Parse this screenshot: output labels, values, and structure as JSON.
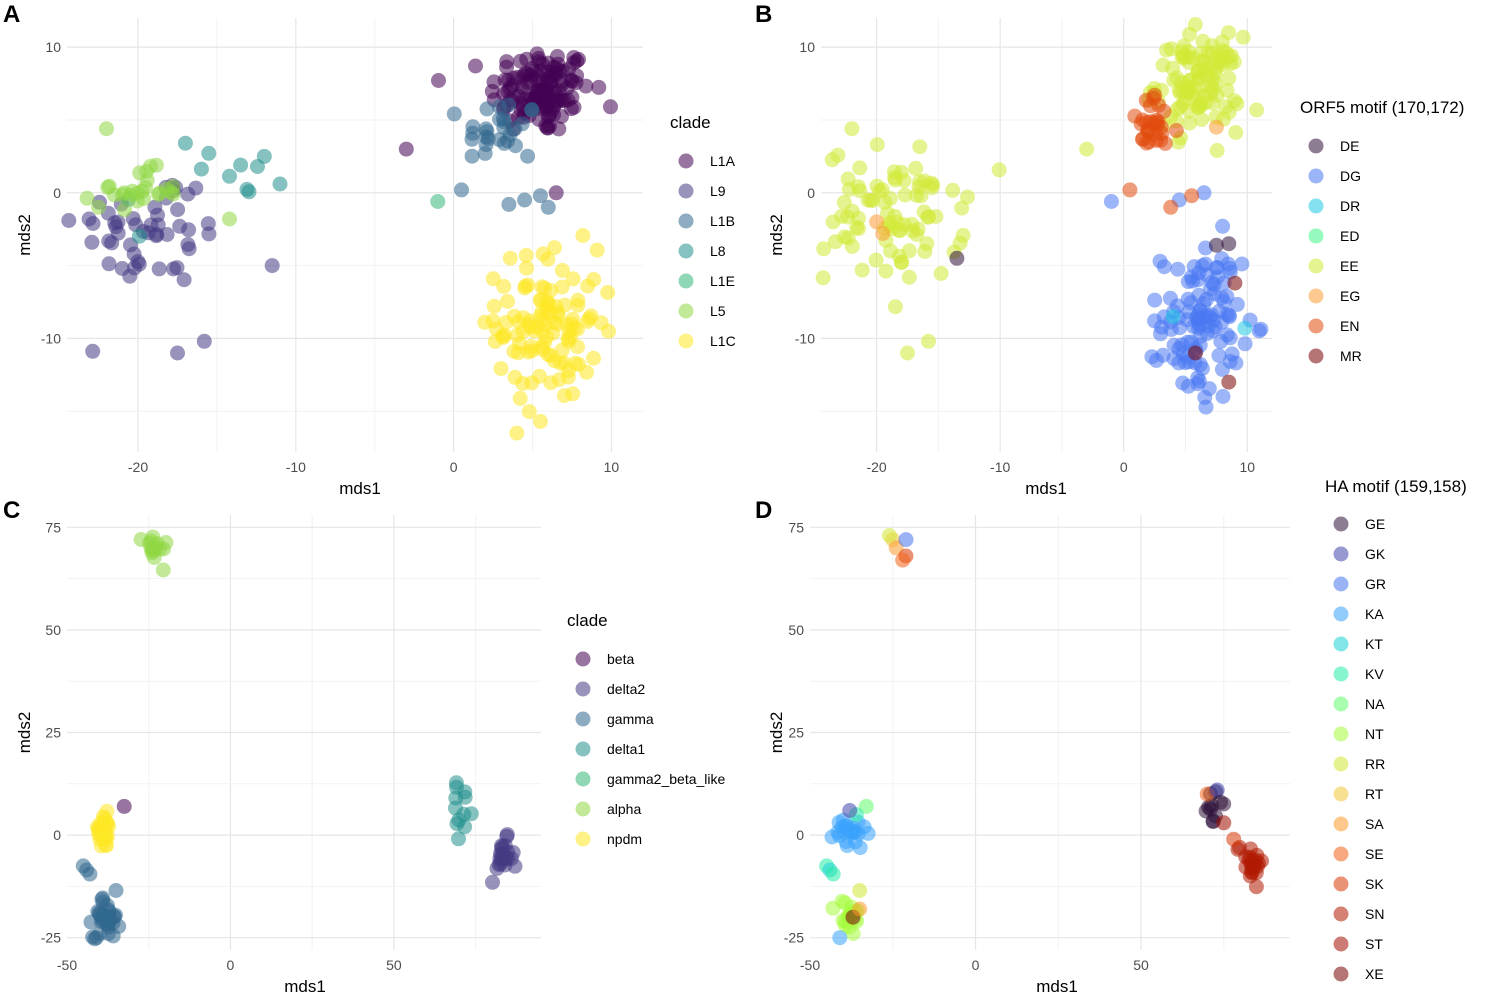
{
  "chart_data": [
    {
      "panel": "A",
      "type": "scatter",
      "xlabel": "mds1",
      "ylabel": "mds2",
      "xlim": [
        -24.5,
        12
      ],
      "ylim": [
        -17.8,
        12
      ],
      "xticks": [
        -20,
        -10,
        0,
        10
      ],
      "yticks": [
        -10,
        0,
        10
      ],
      "xtick_labels": [
        "-20",
        "-10",
        "0",
        "10"
      ],
      "ytick_labels": [
        "-10",
        "0",
        "10"
      ],
      "legend": {
        "title": "clade",
        "position": "right",
        "labels": [
          "L1A",
          "L9",
          "L1B",
          "L8",
          "L1E",
          "L5",
          "L1C"
        ],
        "colors": [
          "#440154",
          "#443a83",
          "#31688e",
          "#21908d",
          "#35b779",
          "#8fd744",
          "#fde725"
        ]
      },
      "clusters": [
        {
          "series": 0,
          "cx": 5.5,
          "cy": 7,
          "sx": 1.6,
          "sy": 1.5,
          "n": 130
        },
        {
          "series": 1,
          "cx": -19,
          "cy": -2.5,
          "sx": 2.5,
          "sy": 2,
          "n": 50
        },
        {
          "series": 2,
          "cx": 3,
          "cy": 4.2,
          "sx": 1.2,
          "sy": 1.2,
          "n": 28
        },
        {
          "series": 3,
          "cx": -16,
          "cy": 0.5,
          "sx": 2.5,
          "sy": 1.5,
          "n": 8
        },
        {
          "series": 5,
          "cx": -20,
          "cy": 0.2,
          "sx": 1.3,
          "sy": 0.7,
          "n": 25
        },
        {
          "series": 6,
          "cx": 6,
          "cy": -9,
          "sx": 1.6,
          "sy": 2.6,
          "n": 110
        }
      ],
      "points": [
        {
          "series": 0,
          "x": -3,
          "y": 3
        },
        {
          "series": 0,
          "x": 6.5,
          "y": 0
        },
        {
          "series": 1,
          "x": -17.5,
          "y": -11
        },
        {
          "series": 1,
          "x": -15.8,
          "y": -10.2
        },
        {
          "series": 1,
          "x": -11.5,
          "y": -5
        },
        {
          "series": 1,
          "x": -21,
          "y": -5.2
        },
        {
          "series": 2,
          "x": 5.5,
          "y": -0.2
        },
        {
          "series": 2,
          "x": 6,
          "y": -1
        },
        {
          "series": 2,
          "x": 4.5,
          "y": -0.5
        },
        {
          "series": 2,
          "x": 0.5,
          "y": 0.2
        },
        {
          "series": 2,
          "x": 3.5,
          "y": -0.8
        },
        {
          "series": 3,
          "x": -11,
          "y": 0.6
        },
        {
          "series": 3,
          "x": -12,
          "y": 2.5
        },
        {
          "series": 3,
          "x": -13.5,
          "y": 1.9
        },
        {
          "series": 3,
          "x": -17,
          "y": 3.4
        },
        {
          "series": 4,
          "x": -1,
          "y": -0.6
        },
        {
          "series": 5,
          "x": -22,
          "y": 4.4
        },
        {
          "series": 5,
          "x": -22.5,
          "y": -1
        },
        {
          "series": 5,
          "x": -14.2,
          "y": -1.8
        },
        {
          "series": 6,
          "x": 4,
          "y": -16.5
        },
        {
          "series": 6,
          "x": 5.5,
          "y": -15.7
        },
        {
          "series": 6,
          "x": 2.5,
          "y": -8.8
        }
      ]
    },
    {
      "panel": "B",
      "type": "scatter",
      "xlabel": "mds1",
      "ylabel": "mds2",
      "xlim": [
        -24.5,
        12
      ],
      "ylim": [
        -17.8,
        12
      ],
      "xticks": [
        -20,
        -10,
        0,
        10
      ],
      "yticks": [
        -10,
        0,
        10
      ],
      "xtick_labels": [
        "-20",
        "-10",
        "0",
        "10"
      ],
      "ytick_labels": [
        "-10",
        "0",
        "10"
      ],
      "legend": {
        "title": "ORF5 motif (170,172)",
        "position": "right",
        "labels": [
          "DE",
          "DG",
          "DR",
          "ED",
          "EE",
          "EG",
          "EN",
          "MR"
        ],
        "colors": [
          "#30123b",
          "#4a78f2",
          "#21c8e4",
          "#3ff68b",
          "#d2e936",
          "#fc9d34",
          "#e24a0c",
          "#7a0403"
        ]
      },
      "clusters": [
        {
          "series": 4,
          "cx": 6,
          "cy": 7.5,
          "sx": 1.7,
          "sy": 1.6,
          "n": 110
        },
        {
          "series": 6,
          "cx": 2.5,
          "cy": 4.5,
          "sx": 1.0,
          "sy": 1.0,
          "n": 28
        },
        {
          "series": 4,
          "cx": -18.5,
          "cy": -1.5,
          "sx": 2.8,
          "sy": 2.3,
          "n": 85
        },
        {
          "series": 1,
          "cx": 6.3,
          "cy": -9,
          "sx": 1.6,
          "sy": 2.6,
          "n": 115
        }
      ],
      "points": [
        {
          "series": 4,
          "x": -3,
          "y": 3
        },
        {
          "series": 4,
          "x": -17.5,
          "y": -11
        },
        {
          "series": 4,
          "x": -15.8,
          "y": -10.2
        },
        {
          "series": 4,
          "x": -22,
          "y": 4.4
        },
        {
          "series": 0,
          "x": -13.5,
          "y": -4.5
        },
        {
          "series": 0,
          "x": 7.5,
          "y": -3.6
        },
        {
          "series": 0,
          "x": 8.5,
          "y": -3.5
        },
        {
          "series": 1,
          "x": -1,
          "y": -0.6
        },
        {
          "series": 1,
          "x": 4.5,
          "y": -0.5
        },
        {
          "series": 1,
          "x": 6.5,
          "y": 0
        },
        {
          "series": 1,
          "x": 8,
          "y": -2.3
        },
        {
          "series": 1,
          "x": 2.5,
          "y": -8.8
        },
        {
          "series": 2,
          "x": 9.8,
          "y": -9.3
        },
        {
          "series": 2,
          "x": 4,
          "y": -8.5
        },
        {
          "series": 5,
          "x": -20,
          "y": -2
        },
        {
          "series": 5,
          "x": -19.5,
          "y": -2.8
        },
        {
          "series": 5,
          "x": 7.5,
          "y": 4.5
        },
        {
          "series": 6,
          "x": 0.5,
          "y": 0.2
        },
        {
          "series": 6,
          "x": 3.8,
          "y": -1
        },
        {
          "series": 6,
          "x": 5.5,
          "y": -0.2
        },
        {
          "series": 6,
          "x": 2.5,
          "y": 6.7
        },
        {
          "series": 7,
          "x": 8.5,
          "y": -13
        },
        {
          "series": 7,
          "x": 5.8,
          "y": -11
        },
        {
          "series": 7,
          "x": 9,
          "y": -6.2
        }
      ]
    },
    {
      "panel": "C",
      "type": "scatter",
      "xlabel": "mds1",
      "ylabel": "mds2",
      "xlim": [
        -50,
        95
      ],
      "ylim": [
        -28,
        78
      ],
      "xticks": [
        -50,
        0,
        50
      ],
      "yticks": [
        -25,
        0,
        25,
        50,
        75
      ],
      "xtick_labels": [
        "-50",
        "0",
        "50"
      ],
      "ytick_labels": [
        "-25",
        "0",
        "25",
        "50",
        "75"
      ],
      "legend": {
        "title": "clade",
        "position": "right",
        "labels": [
          "beta",
          "delta2",
          "gamma",
          "delta1",
          "gamma2_beta_like",
          "alpha",
          "npdm"
        ],
        "colors": [
          "#440154",
          "#443a83",
          "#31688e",
          "#21908d",
          "#35b779",
          "#8fd744",
          "#fde725"
        ]
      },
      "clusters": [
        {
          "series": 5,
          "cx": -23,
          "cy": 70,
          "sx": 1.8,
          "sy": 1.8,
          "n": 15
        },
        {
          "series": 6,
          "cx": -39,
          "cy": 1,
          "sx": 1.6,
          "sy": 2.2,
          "n": 25
        },
        {
          "series": 2,
          "cx": -38,
          "cy": -20,
          "sx": 2.0,
          "sy": 2.5,
          "n": 35
        },
        {
          "series": 3,
          "cx": 71,
          "cy": 6,
          "sx": 1.8,
          "sy": 2.8,
          "n": 12
        },
        {
          "series": 1,
          "cx": 83,
          "cy": -6,
          "sx": 1.8,
          "sy": 2.5,
          "n": 22
        }
      ],
      "points": [
        {
          "series": 0,
          "x": -32.5,
          "y": 7
        },
        {
          "series": 2,
          "x": -45,
          "y": -7.5
        },
        {
          "series": 2,
          "x": -44,
          "y": -8.5
        },
        {
          "series": 2,
          "x": -43,
          "y": -9.5
        },
        {
          "series": 2,
          "x": -41,
          "y": -25
        },
        {
          "series": 2,
          "x": -35,
          "y": -13.5
        }
      ]
    },
    {
      "panel": "D",
      "type": "scatter",
      "xlabel": "mds1",
      "ylabel": "mds2",
      "xlim": [
        -50,
        95
      ],
      "ylim": [
        -28,
        78
      ],
      "xticks": [
        -50,
        0,
        50
      ],
      "yticks": [
        -25,
        0,
        25,
        50,
        75
      ],
      "xtick_labels": [
        "-50",
        "0",
        "50"
      ],
      "ytick_labels": [
        "-25",
        "0",
        "25",
        "50",
        "75"
      ],
      "legend": {
        "title": "HA motif (159,158)",
        "position": "right",
        "labels": [
          "GE",
          "GK",
          "GR",
          "KA",
          "KT",
          "KV",
          "NA",
          "NT",
          "RR",
          "RT",
          "SA",
          "SE",
          "SK",
          "SN",
          "ST",
          "XE"
        ],
        "colors": [
          "#30123b",
          "#4145ab",
          "#4675ed",
          "#39a2fc",
          "#1bcfd4",
          "#24eca6",
          "#61fc6c",
          "#a4fc3b",
          "#d1e834",
          "#f3c63a",
          "#fe9b2d",
          "#f36315",
          "#d93806",
          "#b11901",
          "#a30e01",
          "#7a0403"
        ]
      },
      "clusters": [
        {
          "series": 3,
          "cx": -38,
          "cy": 0.5,
          "sx": 2.5,
          "sy": 2.2,
          "n": 22
        },
        {
          "series": 7,
          "cx": -38,
          "cy": -20,
          "sx": 2.0,
          "sy": 2.2,
          "n": 18
        },
        {
          "series": 13,
          "cx": 83,
          "cy": -6,
          "sx": 2.0,
          "sy": 2.5,
          "n": 22
        },
        {
          "series": 0,
          "cx": 71,
          "cy": 6,
          "sx": 1.8,
          "sy": 2.5,
          "n": 10
        }
      ],
      "points": [
        {
          "series": 9,
          "x": -25,
          "y": 72
        },
        {
          "series": 10,
          "x": -24,
          "y": 70
        },
        {
          "series": 2,
          "x": -21,
          "y": 72
        },
        {
          "series": 12,
          "x": -21,
          "y": 68
        },
        {
          "series": 11,
          "x": -22,
          "y": 67
        },
        {
          "series": 8,
          "x": -26,
          "y": 73
        },
        {
          "series": 5,
          "x": -45,
          "y": -7.5
        },
        {
          "series": 4,
          "x": -44,
          "y": -8.5
        },
        {
          "series": 5,
          "x": -43,
          "y": -9.5
        },
        {
          "series": 6,
          "x": -33,
          "y": 7
        },
        {
          "series": 5,
          "x": -36,
          "y": 5
        },
        {
          "series": 1,
          "x": -38,
          "y": 6
        },
        {
          "series": 8,
          "x": -35,
          "y": -13.5
        },
        {
          "series": 3,
          "x": -41,
          "y": -25
        },
        {
          "series": 15,
          "x": -37,
          "y": -20
        },
        {
          "series": 10,
          "x": -35,
          "y": -18
        },
        {
          "series": 11,
          "x": 70,
          "y": 10
        },
        {
          "series": 1,
          "x": 73,
          "y": 11
        },
        {
          "series": 14,
          "x": 75,
          "y": 3
        },
        {
          "series": 12,
          "x": 78,
          "y": -1
        },
        {
          "series": 0,
          "x": 74,
          "y": 8
        }
      ]
    }
  ]
}
